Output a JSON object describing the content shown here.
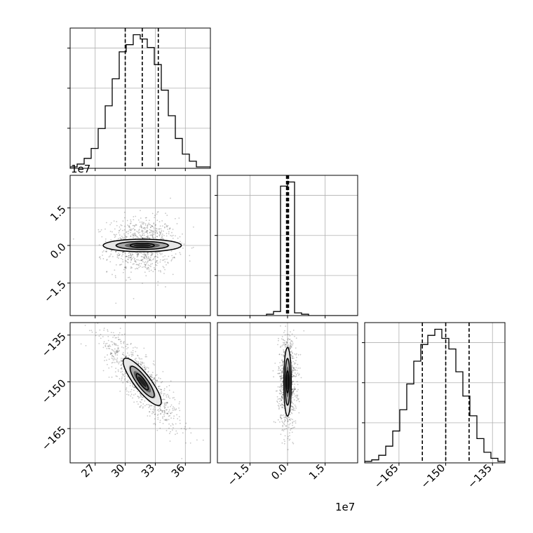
{
  "chart_data": {
    "type": "corner",
    "grid": true,
    "colors": {
      "line": "#000000",
      "grid": "#b0b0b0",
      "points": "#000000"
    },
    "offset_labels": {
      "bottom_middle": "1e7",
      "left_middle": "1e7"
    },
    "params": [
      {
        "index": 0,
        "range": [
          24.5,
          38.5
        ],
        "ticks": [
          27,
          30,
          33,
          36
        ],
        "tick_labels": [
          "27",
          "30",
          "33",
          "36"
        ],
        "quantiles": [
          30.0,
          31.7,
          33.3
        ]
      },
      {
        "index": 1,
        "range": [
          -2.8,
          2.8
        ],
        "ticks": [
          -1.5,
          0.0,
          1.5
        ],
        "tick_labels": [
          "−1.5",
          "0.0",
          "1.5"
        ],
        "quantiles": [
          -0.04,
          0.0,
          0.04
        ]
      },
      {
        "index": 2,
        "range": [
          -176,
          -131
        ],
        "ticks": [
          -165,
          -150,
          -135
        ],
        "tick_labels": [
          "−165",
          "−150",
          "−135"
        ],
        "quantiles": [
          -157.5,
          -150.0,
          -142.5
        ]
      }
    ],
    "histograms": [
      {
        "param": 0,
        "edges": [
          24.5,
          25.2,
          25.9,
          26.6,
          27.3,
          28.0,
          28.7,
          29.4,
          30.1,
          30.8,
          31.5,
          32.2,
          32.9,
          33.6,
          34.3,
          35.0,
          35.7,
          36.4,
          37.1,
          37.8,
          38.5
        ],
        "counts": [
          0.01,
          0.03,
          0.07,
          0.14,
          0.28,
          0.44,
          0.63,
          0.82,
          0.87,
          0.94,
          0.91,
          0.85,
          0.73,
          0.55,
          0.37,
          0.21,
          0.1,
          0.05,
          0.01,
          0.01
        ]
      },
      {
        "param": 1,
        "edges": [
          -2.8,
          -2.52,
          -2.24,
          -1.96,
          -1.68,
          -1.4,
          -1.12,
          -0.84,
          -0.56,
          -0.28,
          0.0,
          0.28,
          0.56,
          0.84,
          1.12,
          1.4,
          1.68,
          1.96,
          2.24,
          2.52,
          2.8
        ],
        "counts": [
          0,
          0,
          0,
          0,
          0,
          0,
          0,
          0.01,
          0.03,
          0.95,
          0.98,
          0.02,
          0.01,
          0,
          0,
          0,
          0,
          0,
          0,
          0
        ]
      },
      {
        "param": 2,
        "edges": [
          -176,
          -173.75,
          -171.5,
          -169.25,
          -167,
          -164.75,
          -162.5,
          -160.25,
          -158,
          -155.75,
          -153.5,
          -151.25,
          -149,
          -146.75,
          -144.5,
          -142.25,
          -140,
          -137.75,
          -135.5,
          -133.25,
          -131
        ],
        "counts": [
          0.01,
          0.02,
          0.05,
          0.11,
          0.21,
          0.35,
          0.52,
          0.67,
          0.78,
          0.84,
          0.88,
          0.82,
          0.75,
          0.6,
          0.44,
          0.31,
          0.16,
          0.07,
          0.03,
          0.01
        ]
      }
    ],
    "joint_2d": [
      {
        "x_param": 0,
        "y_param": 1,
        "center": [
          31.7,
          0.0
        ],
        "scatter_sigma": [
          1.7,
          0.55
        ],
        "correlation": 0.0,
        "contours": [
          {
            "sigma": [
              1.2,
              0.09
            ]
          },
          {
            "sigma": [
              2.6,
              0.16
            ]
          },
          {
            "sigma": [
              3.9,
              0.25
            ]
          }
        ]
      },
      {
        "x_param": 0,
        "y_param": 2,
        "center": [
          31.7,
          -150.0
        ],
        "scatter_sigma": [
          1.9,
          7.5
        ],
        "correlation": -0.85,
        "contours": [
          {
            "sigma": [
              0.6,
              2.6
            ]
          },
          {
            "sigma": [
              1.2,
              5.0
            ]
          },
          {
            "sigma": [
              1.9,
              7.6
            ]
          }
        ]
      },
      {
        "x_param": 1,
        "y_param": 2,
        "center": [
          0.0,
          -150.0
        ],
        "scatter_sigma": [
          0.18,
          7.5
        ],
        "correlation": 0.0,
        "contours": [
          {
            "sigma": [
              0.05,
              3.5
            ]
          },
          {
            "sigma": [
              0.1,
              7.5
            ]
          },
          {
            "sigma": [
              0.15,
              11.0
            ]
          }
        ]
      }
    ]
  }
}
